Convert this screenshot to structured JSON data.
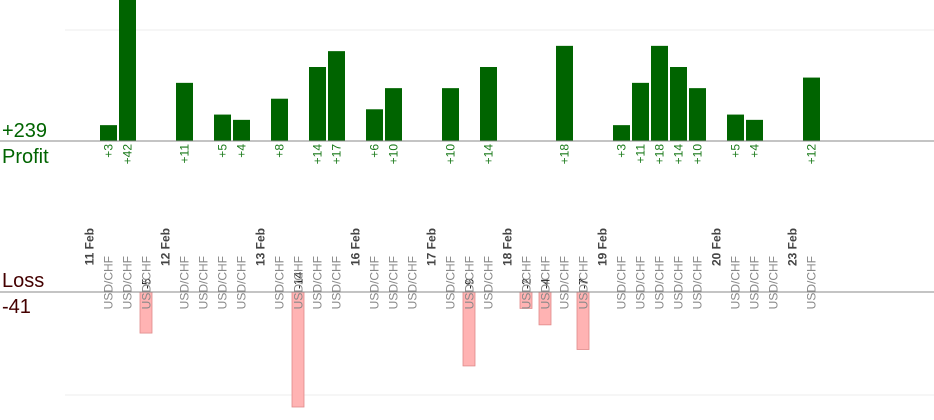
{
  "summary": {
    "profit_total": "+239",
    "profit_label": "Profit",
    "loss_label": "Loss",
    "loss_total": "-41"
  },
  "colors": {
    "profit_bar": "#006400",
    "profit_text": "#1a7a1a",
    "loss_bar": "#ffb3b3",
    "loss_text": "#440000",
    "axis": "#888888",
    "grid": "#eeeeee"
  },
  "chart_data": {
    "type": "bar",
    "title": "",
    "profit_ylim": [
      0,
      28
    ],
    "loss_ylim": [
      0,
      14
    ],
    "groups": [
      {
        "date": "11 Feb",
        "pairs": [
          "USD/CHF",
          "USD/CHF",
          "USD/CHF"
        ],
        "values": [
          3,
          42,
          -5
        ]
      },
      {
        "date": "12 Feb",
        "pairs": [
          "USD/CHF",
          "USD/CHF",
          "USD/CHF",
          "USD/CHF"
        ],
        "values": [
          11,
          null,
          5,
          4
        ]
      },
      {
        "date": "13 Feb",
        "pairs": [
          "USD/CHF",
          "USD/CHF",
          "USD/CHF",
          "USD/CHF"
        ],
        "values": [
          8,
          -14,
          14,
          17
        ]
      },
      {
        "date": "16 Feb",
        "pairs": [
          "USD/CHF",
          "USD/CHF",
          "USD/CHF"
        ],
        "values": [
          6,
          10,
          null
        ]
      },
      {
        "date": "17 Feb",
        "pairs": [
          "USD/CHF",
          "USD/CHF",
          "USD/CHF"
        ],
        "values": [
          10,
          -9,
          14
        ]
      },
      {
        "date": "18 Feb",
        "pairs": [
          "USD/CHF",
          "USD/CHF",
          "USD/CHF",
          "USD/CHF"
        ],
        "values": [
          -2,
          -4,
          18,
          -7
        ]
      },
      {
        "date": "19 Feb",
        "pairs": [
          "USD/CHF",
          "USD/CHF",
          "USD/CHF",
          "USD/CHF",
          "USD/CHF"
        ],
        "values": [
          3,
          11,
          18,
          14,
          10
        ]
      },
      {
        "date": "20 Feb",
        "pairs": [
          "USD/CHF",
          "USD/CHF",
          "USD/CHF"
        ],
        "values": [
          5,
          4,
          null
        ]
      },
      {
        "date": "23 Feb",
        "pairs": [
          "USD/CHF"
        ],
        "values": [
          12
        ]
      }
    ]
  }
}
